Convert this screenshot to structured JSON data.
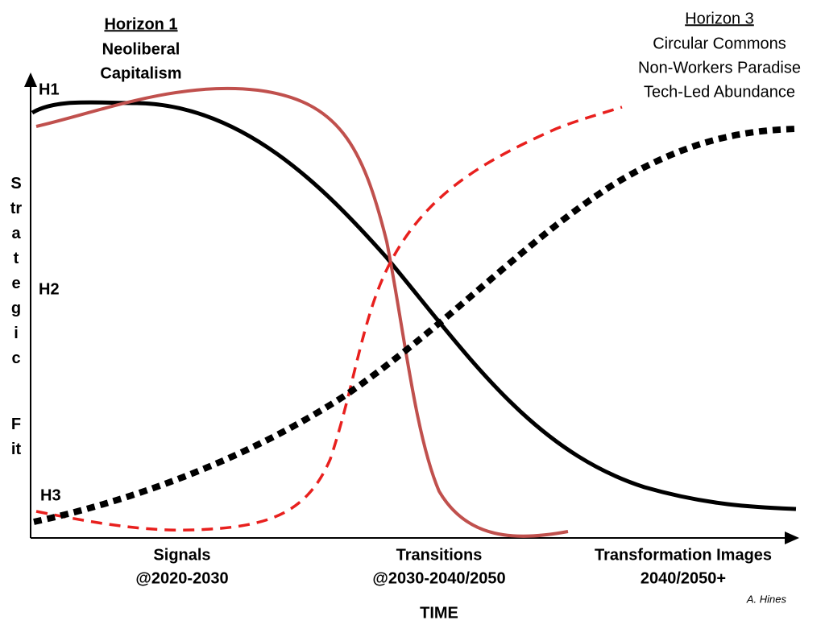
{
  "horizon1": {
    "title": "Horizon 1",
    "lines": [
      "Neoliberal",
      "Capitalism"
    ]
  },
  "horizon3": {
    "title": "Horizon 3",
    "lines": [
      "Circular Commons",
      "Non-Workers Paradise",
      "Tech-Led Abundance"
    ]
  },
  "levels": [
    "H1",
    "H2",
    "H3"
  ],
  "y_axis": {
    "words": [
      "Strategic",
      "Fit"
    ]
  },
  "x_axis": {
    "stages": [
      [
        "Signals",
        "@2020-2030"
      ],
      [
        "Transitions",
        "@2030-2040/2050"
      ],
      [
        "Transformation Images",
        "2040/2050+"
      ]
    ],
    "label": "TIME"
  },
  "credit": "A. Hines"
}
